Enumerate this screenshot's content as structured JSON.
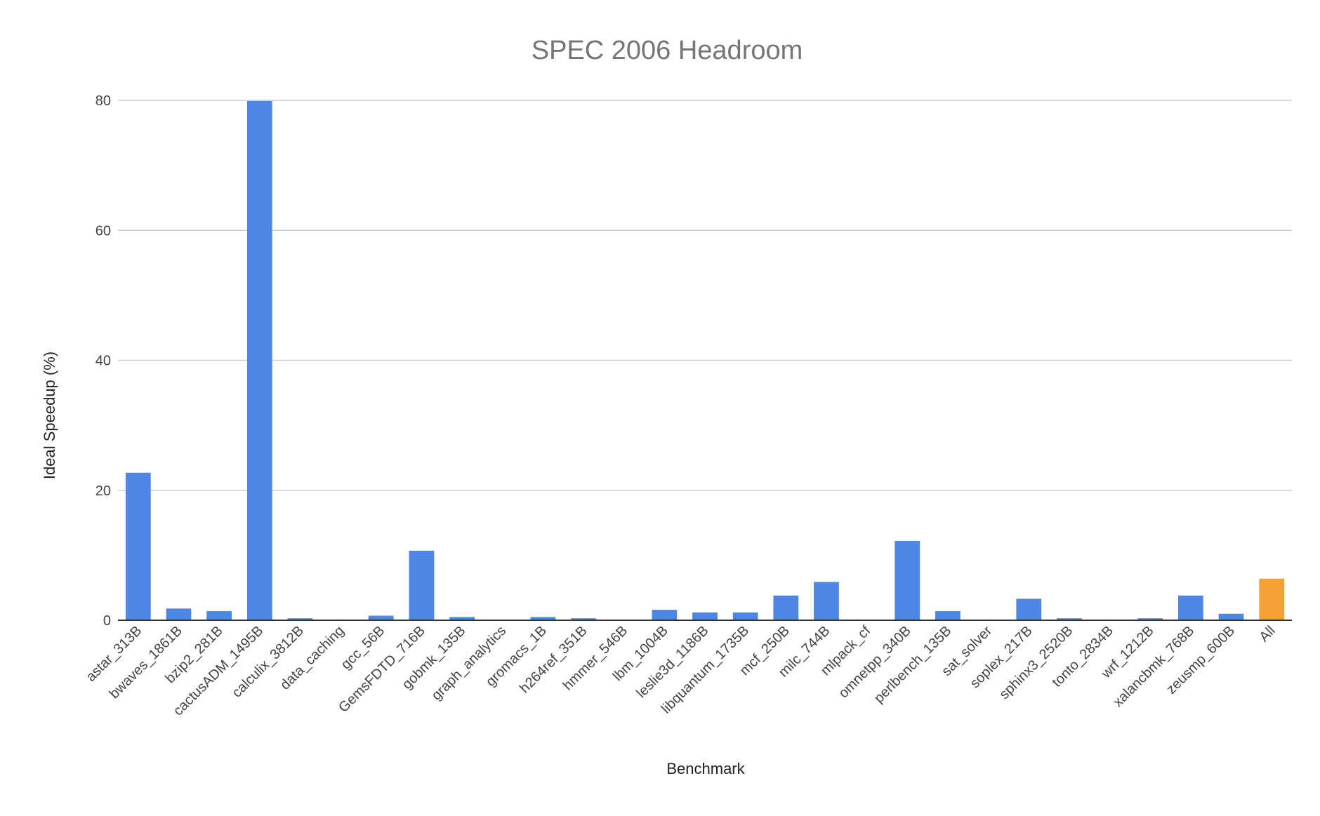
{
  "chart_data": {
    "type": "bar",
    "title": "SPEC 2006 Headroom",
    "xlabel": "Benchmark",
    "ylabel": "Ideal Speedup (%)",
    "ylim": [
      0,
      80
    ],
    "yticks": [
      "0",
      "20",
      "40",
      "60",
      "80"
    ],
    "grid": true,
    "legend": "none",
    "colors": {
      "default": "#4e86e8",
      "highlight": "#f4a236"
    },
    "highlight_category": "All",
    "categories": [
      "astar_313B",
      "bwaves_1861B",
      "bzip2_281B",
      "cactusADM_1495B",
      "calculix_3812B",
      "data_caching",
      "gcc_56B",
      "GemsFDTD_716B",
      "gobmk_135B",
      "graph_analytics",
      "gromacs_1B",
      "h264ref_351B",
      "hmmer_546B",
      "lbm_1004B",
      "leslie3d_1186B",
      "libquantum_1735B",
      "mcf_250B",
      "milc_744B",
      "mlpack_cf",
      "omnetpp_340B",
      "perlbench_135B",
      "sat_solver",
      "soplex_217B",
      "sphinx3_2520B",
      "tonto_2834B",
      "wrf_1212B",
      "xalancbmk_768B",
      "zeusmp_600B",
      "All"
    ],
    "values": [
      22.7,
      1.8,
      1.4,
      79.9,
      0.3,
      0,
      0.7,
      10.7,
      0.5,
      0,
      0.5,
      0.3,
      0,
      1.6,
      1.2,
      1.2,
      3.8,
      5.9,
      0,
      12.2,
      1.4,
      0,
      3.3,
      0.3,
      0,
      0.3,
      3.8,
      1.0,
      6.4
    ]
  }
}
